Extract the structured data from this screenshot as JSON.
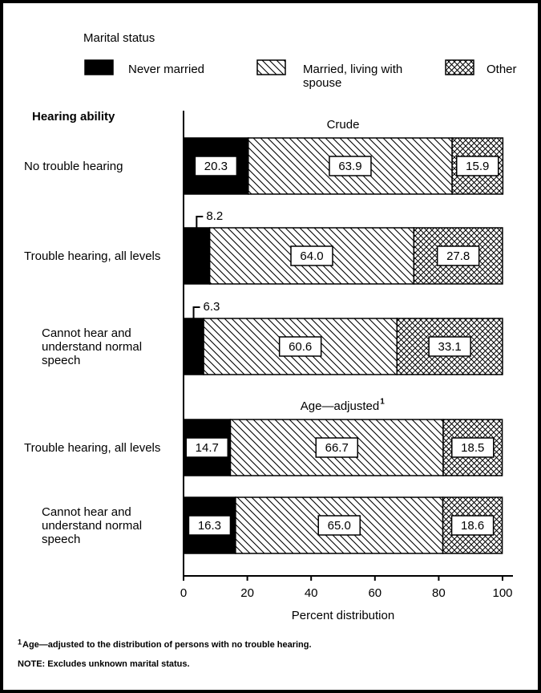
{
  "chart_data": {
    "type": "stacked-bar-horizontal",
    "legend_title": "Marital status",
    "axis_title": "Hearing ability",
    "xlabel": "Percent distribution",
    "groups": [
      "Crude",
      "Age—adjusted"
    ],
    "group_note_marker": "1",
    "categories": [
      "No trouble hearing",
      "Trouble hearing, all levels",
      "Cannot hear and understand normal speech",
      "Trouble hearing, all levels",
      "Cannot hear and understand normal speech"
    ],
    "series": [
      {
        "name": "Never married",
        "color": "#000000",
        "pattern": "solid",
        "values": [
          20.3,
          8.2,
          6.3,
          14.7,
          16.3
        ],
        "value_labels": [
          "20.3",
          "8.2",
          "6.3",
          "14.7",
          "16.3"
        ]
      },
      {
        "name": "Married, living with spouse",
        "color": "#000000",
        "pattern": "diagonal",
        "values": [
          63.9,
          64.0,
          60.6,
          66.7,
          65.0
        ],
        "value_labels": [
          "63.9",
          "64.0",
          "60.6",
          "66.7",
          "65.0"
        ]
      },
      {
        "name": "Other",
        "color": "#000000",
        "pattern": "crosshatch",
        "values": [
          15.9,
          27.8,
          33.1,
          18.5,
          18.6
        ],
        "value_labels": [
          "15.9",
          "27.8",
          "33.1",
          "18.5",
          "18.6"
        ]
      }
    ],
    "xlim": [
      0,
      100
    ],
    "xticks": [
      0,
      20,
      40,
      60,
      80,
      100
    ],
    "footnote_marker": "1",
    "footnote": "Age—adjusted to the distribution of persons with no trouble hearing.",
    "note": "NOTE: Excludes unknown marital status."
  }
}
